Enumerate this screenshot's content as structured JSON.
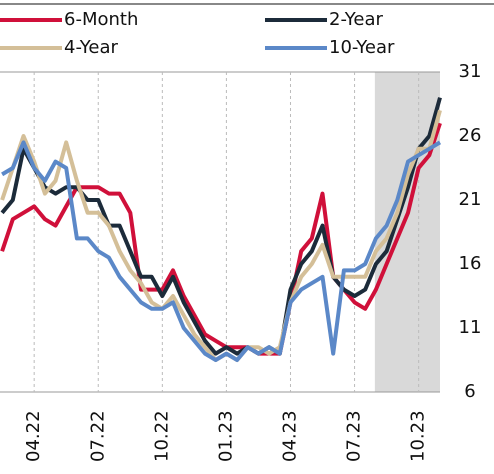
{
  "chart_data": {
    "type": "line",
    "x": [
      1.5,
      2,
      2.5,
      3,
      3.5,
      4,
      4.5,
      5,
      5.5,
      6,
      6.5,
      7,
      7.5,
      8,
      8.5,
      9,
      9.5,
      10,
      10.5,
      11,
      11.5,
      12,
      12.5,
      13,
      13.5,
      14,
      14.5,
      15,
      15.5,
      16,
      16.5,
      17,
      17.5,
      18,
      18.5,
      19,
      19.5,
      20,
      20.5,
      21,
      21.5,
      22
    ],
    "series": [
      {
        "name": "6-Month",
        "color": "#d0103a",
        "values": [
          17,
          19.5,
          20,
          20.5,
          19.5,
          19,
          20.5,
          22,
          22,
          22,
          21.5,
          21.5,
          20,
          14,
          14,
          14,
          15.5,
          13.5,
          12,
          10.5,
          10,
          9.5,
          9.5,
          9.5,
          9,
          9,
          9,
          13,
          17,
          18,
          21.5,
          15,
          14,
          13,
          12.5,
          14,
          16,
          18,
          20,
          23.5,
          24.5,
          27
        ]
      },
      {
        "name": "2-Year",
        "color": "#1c2b3a",
        "values": [
          20,
          21,
          25,
          23.5,
          22,
          21.5,
          22,
          22,
          21,
          21,
          19,
          19,
          17,
          15,
          15,
          13.5,
          15,
          13,
          11.5,
          10,
          9,
          9.5,
          9,
          9.5,
          9,
          9.5,
          9,
          14,
          16,
          17,
          19,
          15,
          14,
          13.5,
          14,
          16,
          17,
          19.5,
          22,
          25,
          26,
          29
        ]
      },
      {
        "name": "4-Year",
        "color": "#d4bf98",
        "values": [
          21,
          23.5,
          26,
          24,
          21.5,
          22.5,
          25.5,
          22.5,
          20,
          20,
          19,
          17,
          15.5,
          14.5,
          13,
          12.5,
          13.5,
          12,
          10.5,
          9.5,
          8.5,
          9,
          8.5,
          9.5,
          9.5,
          9,
          9.5,
          13,
          15,
          16,
          17.5,
          15,
          15,
          15,
          15,
          17,
          18,
          20,
          23,
          25,
          25,
          28
        ]
      },
      {
        "name": "10-Year",
        "color": "#5b88c8",
        "values": [
          23,
          23.5,
          25.5,
          23.5,
          22.5,
          24,
          23.5,
          18,
          18,
          17,
          16.5,
          15,
          14,
          13,
          12.5,
          12.5,
          13,
          11,
          10,
          9,
          8.5,
          9,
          8.5,
          9.5,
          9,
          9.5,
          9,
          13,
          14,
          14.5,
          15,
          9,
          15.5,
          15.5,
          16,
          18,
          19,
          21,
          24,
          24.5,
          25,
          25.5
        ]
      }
    ],
    "xlim": [
      1.4,
      22
    ],
    "xticks": [
      {
        "value": 3,
        "label": "04.22"
      },
      {
        "value": 6,
        "label": "07.22"
      },
      {
        "value": 9,
        "label": "10.22"
      },
      {
        "value": 12,
        "label": "01.23"
      },
      {
        "value": 15,
        "label": "04.23"
      },
      {
        "value": 18,
        "label": "07.23"
      },
      {
        "value": 21,
        "label": "10.23"
      }
    ],
    "ylim": [
      6,
      31
    ],
    "yticks": [
      6,
      11,
      16,
      21,
      26,
      31
    ],
    "shaded_x": [
      18.95,
      22
    ],
    "shade_color": "#d9d9d9",
    "grid": true
  }
}
